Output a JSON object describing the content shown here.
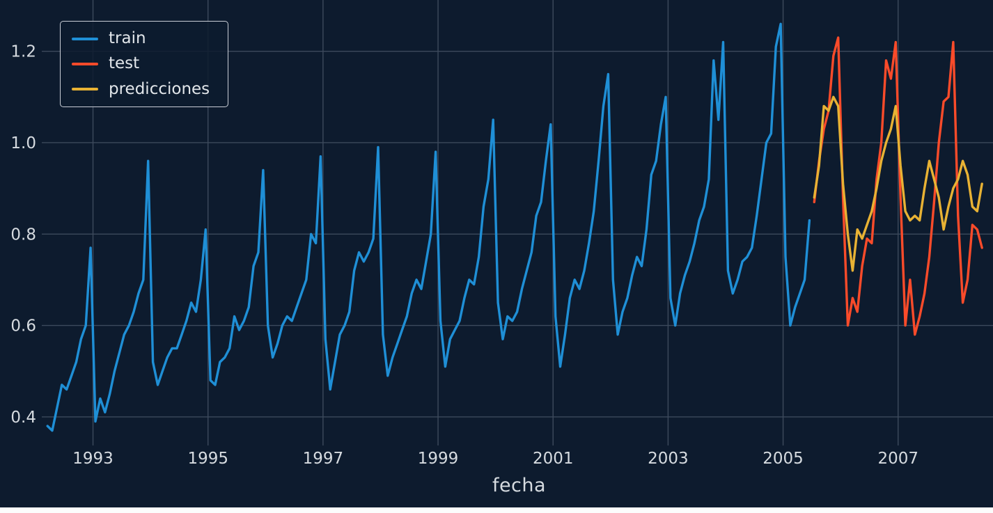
{
  "chart_data": {
    "type": "line",
    "title": "",
    "xlabel": "fecha",
    "ylabel": "",
    "grid": true,
    "legend_position": "upper left",
    "background_color": "#0d1b2e",
    "grid_color": "#3d4a5c",
    "tick_color": "#d6dbe0",
    "x_ticks": [
      1993,
      1995,
      1997,
      1999,
      2001,
      2003,
      2005,
      2007
    ],
    "y_ticks": [
      0.4,
      0.6,
      0.8,
      1.0,
      1.2
    ],
    "x_range": [
      1992.17,
      2008.65
    ],
    "y_range": [
      0.345,
      1.3
    ],
    "x_unit": "year-month",
    "series": [
      {
        "name": "train",
        "color": "#1f8fd6",
        "start": "1992-03",
        "values": [
          0.38,
          0.37,
          0.42,
          0.47,
          0.46,
          0.49,
          0.52,
          0.57,
          0.6,
          0.77,
          0.39,
          0.44,
          0.41,
          0.45,
          0.5,
          0.54,
          0.58,
          0.6,
          0.63,
          0.67,
          0.7,
          0.96,
          0.52,
          0.47,
          0.5,
          0.53,
          0.55,
          0.55,
          0.58,
          0.61,
          0.65,
          0.63,
          0.7,
          0.81,
          0.48,
          0.47,
          0.52,
          0.53,
          0.55,
          0.62,
          0.59,
          0.61,
          0.64,
          0.73,
          0.76,
          0.94,
          0.6,
          0.53,
          0.56,
          0.6,
          0.62,
          0.61,
          0.64,
          0.67,
          0.7,
          0.8,
          0.78,
          0.97,
          0.57,
          0.46,
          0.52,
          0.58,
          0.6,
          0.63,
          0.72,
          0.76,
          0.74,
          0.76,
          0.79,
          0.99,
          0.58,
          0.49,
          0.53,
          0.56,
          0.59,
          0.62,
          0.67,
          0.7,
          0.68,
          0.74,
          0.8,
          0.98,
          0.61,
          0.51,
          0.57,
          0.59,
          0.61,
          0.66,
          0.7,
          0.69,
          0.75,
          0.86,
          0.92,
          1.05,
          0.65,
          0.57,
          0.62,
          0.61,
          0.63,
          0.68,
          0.72,
          0.76,
          0.84,
          0.87,
          0.96,
          1.04,
          0.62,
          0.51,
          0.58,
          0.66,
          0.7,
          0.68,
          0.72,
          0.78,
          0.85,
          0.96,
          1.08,
          1.15,
          0.7,
          0.58,
          0.63,
          0.66,
          0.71,
          0.75,
          0.73,
          0.81,
          0.93,
          0.96,
          1.04,
          1.1,
          0.66,
          0.6,
          0.67,
          0.71,
          0.74,
          0.78,
          0.83,
          0.86,
          0.92,
          1.18,
          1.05,
          1.22,
          0.72,
          0.67,
          0.7,
          0.74,
          0.75,
          0.77,
          0.84,
          0.92,
          1.0,
          1.02,
          1.21,
          1.26,
          0.75,
          0.6,
          0.64,
          0.67,
          0.7,
          0.83
        ]
      },
      {
        "name": "test",
        "color": "#fa4b2a",
        "start": "2005-07",
        "values": [
          0.87,
          0.96,
          1.03,
          1.07,
          1.19,
          1.23,
          0.88,
          0.6,
          0.66,
          0.63,
          0.73,
          0.79,
          0.78,
          0.92,
          1.0,
          1.18,
          1.14,
          1.22,
          0.88,
          0.6,
          0.7,
          0.58,
          0.62,
          0.67,
          0.75,
          0.87,
          1.0,
          1.09,
          1.1,
          1.22,
          0.84,
          0.65,
          0.7,
          0.82,
          0.81,
          0.77
        ]
      },
      {
        "name": "predicciones",
        "color": "#e8b234",
        "start": "2005-07",
        "values": [
          0.88,
          0.95,
          1.08,
          1.07,
          1.1,
          1.08,
          0.91,
          0.8,
          0.72,
          0.81,
          0.79,
          0.82,
          0.85,
          0.9,
          0.96,
          1.0,
          1.03,
          1.08,
          0.95,
          0.85,
          0.83,
          0.84,
          0.83,
          0.9,
          0.96,
          0.92,
          0.88,
          0.81,
          0.86,
          0.9,
          0.92,
          0.96,
          0.93,
          0.86,
          0.85,
          0.91
        ]
      }
    ]
  }
}
